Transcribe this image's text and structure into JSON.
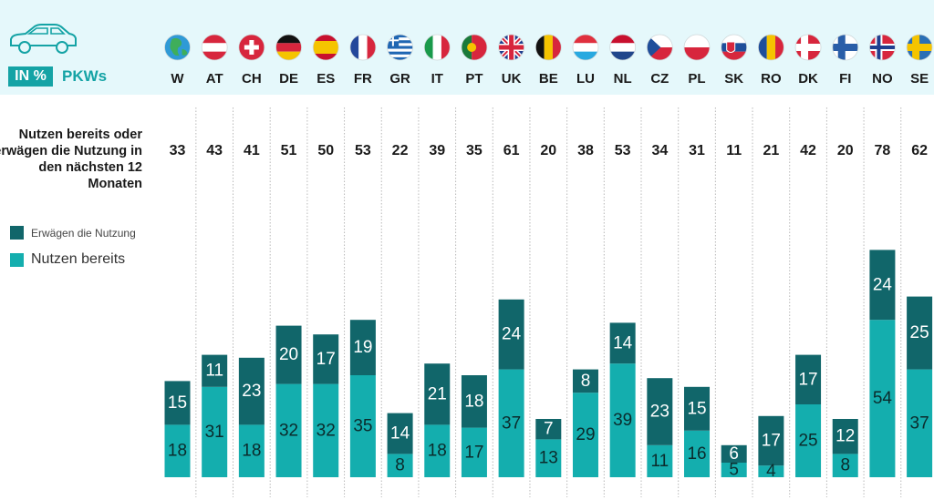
{
  "header": {
    "unit_badge": "IN %",
    "vehicle_label": "PKWs",
    "car_icon": "car-icon"
  },
  "totals_label": "Nutzen bereits oder erwägen die Nutzung in den nächsten 12 Monaten",
  "legend": {
    "considering": "Erwägen die Nutzung",
    "using": "Nutzen bereits"
  },
  "colors": {
    "header_bg": "#e5f8fb",
    "accent": "#14a3a5",
    "considering": "#11666a",
    "using": "#14aeae"
  },
  "chart_data": {
    "type": "bar",
    "stacked": true,
    "categories": [
      "W",
      "AT",
      "CH",
      "DE",
      "ES",
      "FR",
      "GR",
      "IT",
      "PT",
      "UK",
      "BE",
      "LU",
      "NL",
      "CZ",
      "PL",
      "SK",
      "RO",
      "DK",
      "FI",
      "NO",
      "SE"
    ],
    "flags": [
      "globe-icon",
      "austria-flag-icon",
      "switzerland-flag-icon",
      "germany-flag-icon",
      "spain-flag-icon",
      "france-flag-icon",
      "greece-flag-icon",
      "italy-flag-icon",
      "portugal-flag-icon",
      "uk-flag-icon",
      "belgium-flag-icon",
      "luxembourg-flag-icon",
      "netherlands-flag-icon",
      "czech-flag-icon",
      "poland-flag-icon",
      "slovakia-flag-icon",
      "romania-flag-icon",
      "denmark-flag-icon",
      "finland-flag-icon",
      "norway-flag-icon",
      "sweden-flag-icon"
    ],
    "totals": [
      33,
      43,
      41,
      51,
      50,
      53,
      22,
      39,
      35,
      61,
      20,
      38,
      53,
      34,
      31,
      11,
      21,
      42,
      20,
      78,
      62
    ],
    "series": [
      {
        "name": "Nutzen bereits",
        "values": [
          18,
          31,
          18,
          32,
          32,
          35,
          8,
          18,
          17,
          37,
          13,
          29,
          39,
          11,
          16,
          5,
          4,
          25,
          8,
          54,
          37
        ]
      },
      {
        "name": "Erwägen die Nutzung",
        "values": [
          15,
          11,
          23,
          20,
          17,
          19,
          14,
          21,
          18,
          24,
          7,
          8,
          14,
          23,
          15,
          6,
          17,
          17,
          12,
          24,
          25
        ]
      }
    ],
    "legend_position": "left",
    "grid": "vertical dotted separators"
  }
}
